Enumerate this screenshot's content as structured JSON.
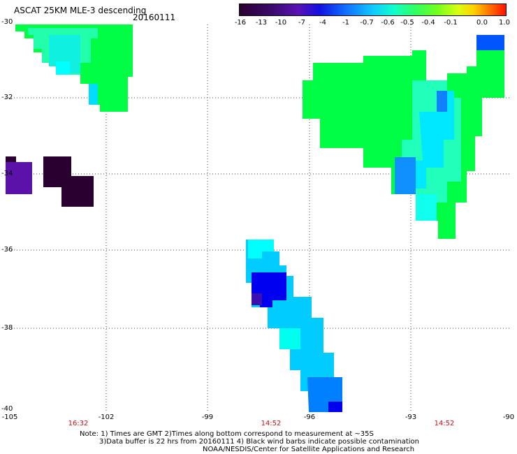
{
  "header": {
    "title": "ASCAT 25KM MLE-3 descending",
    "date": "20160111"
  },
  "colorbar": {
    "ticks": [
      "-16",
      "-13",
      "-10",
      "-7",
      "-4",
      "-1",
      "-0.7",
      "-0.6",
      "-0.5",
      "-0.4",
      "-0.1",
      "0.0",
      "1.0"
    ]
  },
  "axes": {
    "lat_labels": [
      "-30",
      "-32",
      "-34",
      "-36",
      "-38",
      "-40"
    ],
    "lon_labels": [
      "-105",
      "-102",
      "-99",
      "-96",
      "-93",
      "-90"
    ]
  },
  "times": [
    "16:32",
    "14:52",
    "14:52"
  ],
  "notes": {
    "line1": "Note: 1) Times are GMT 2)Times along bottom correspond to measurement at ~35S",
    "line2": "3)Data buffer is 22 hrs from 20160111 4) Black wind barbs indicate possible contamination",
    "line3": "NOAA/NESDIS/Center for Satellite Applications and Research"
  },
  "colors": {
    "green": "#00ff33",
    "cyan": "#00ffff",
    "lightblue": "#00ccff",
    "midblue": "#0099ff",
    "blue": "#0055ff",
    "deepblue": "#0000ee",
    "purple": "#5a0fa8",
    "darkpurple": "#2a0030"
  }
}
